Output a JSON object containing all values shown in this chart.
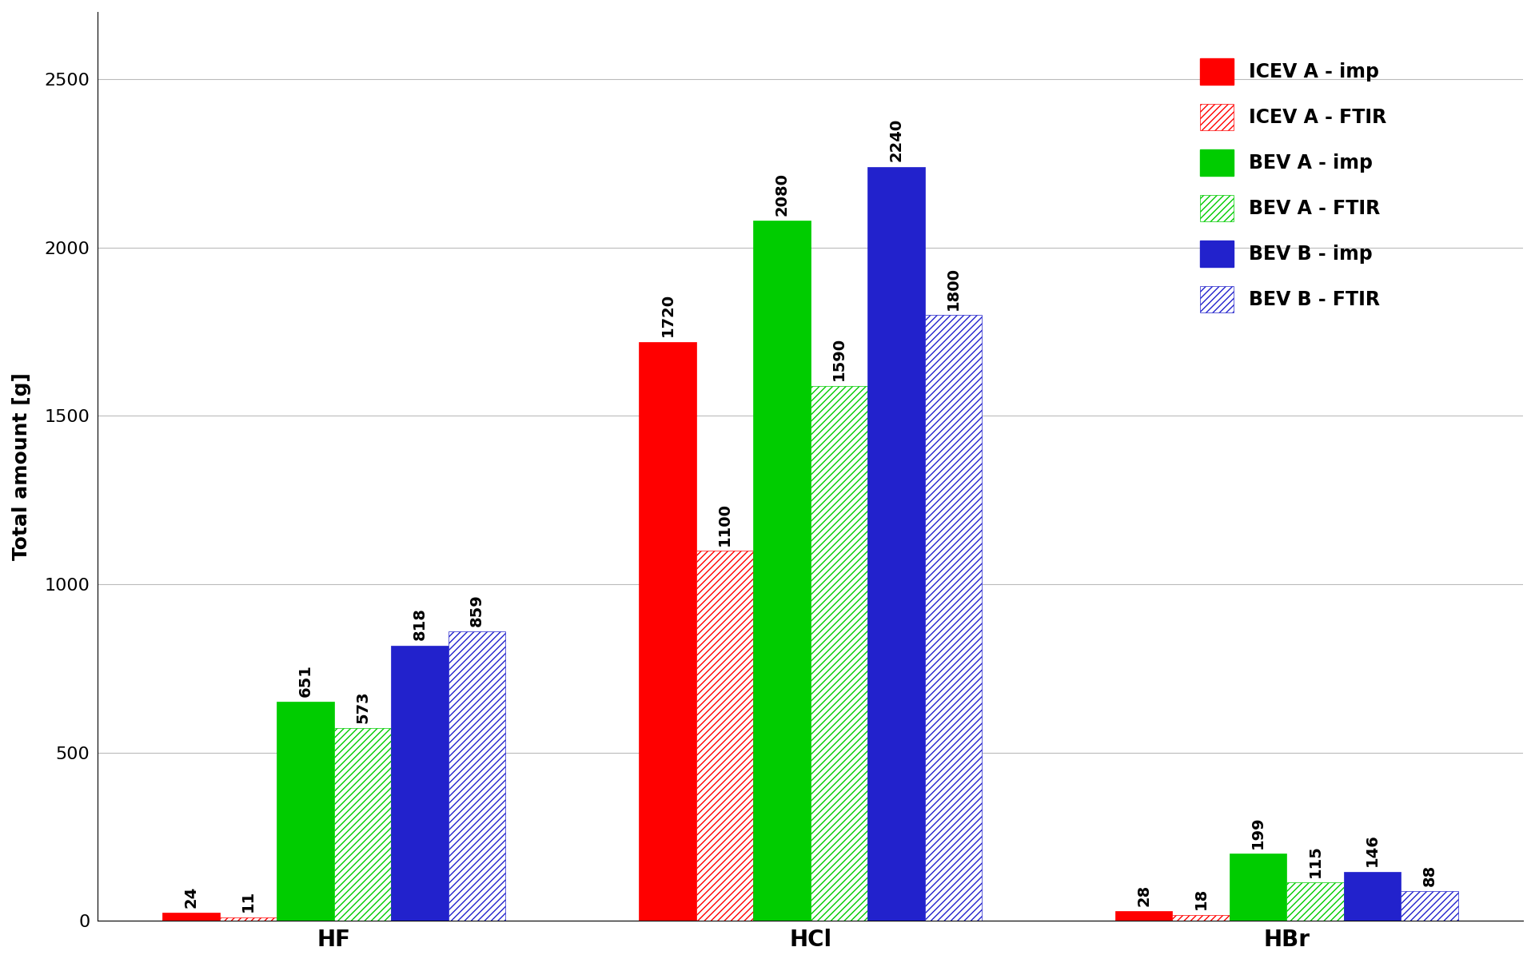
{
  "categories": [
    "HF",
    "HCl",
    "HBr"
  ],
  "series": [
    {
      "label": "ICEV A - imp",
      "color": "#ff0000",
      "hatch": null,
      "values": [
        24,
        1720,
        28
      ]
    },
    {
      "label": "ICEV A - FTIR",
      "color": "#ff0000",
      "hatch": "////",
      "values": [
        11,
        1100,
        18
      ]
    },
    {
      "label": "BEV A - imp",
      "color": "#00cc00",
      "hatch": null,
      "values": [
        651,
        2080,
        199
      ]
    },
    {
      "label": "BEV A - FTIR",
      "color": "#00cc00",
      "hatch": "////",
      "values": [
        573,
        1590,
        115
      ]
    },
    {
      "label": "BEV B - imp",
      "color": "#2222cc",
      "hatch": null,
      "values": [
        818,
        2240,
        146
      ]
    },
    {
      "label": "BEV B - FTIR",
      "color": "#2222cc",
      "hatch": "////",
      "values": [
        859,
        1800,
        88
      ]
    }
  ],
  "ylabel": "Total amount [g]",
  "ylim": [
    0,
    2700
  ],
  "yticks": [
    0,
    500,
    1000,
    1500,
    2000,
    2500
  ],
  "bar_width": 0.12,
  "label_fontsize": 18,
  "tick_fontsize": 16,
  "legend_fontsize": 17,
  "value_fontsize": 14,
  "background_color": "#ffffff",
  "grid_color": "#bbbbbb"
}
